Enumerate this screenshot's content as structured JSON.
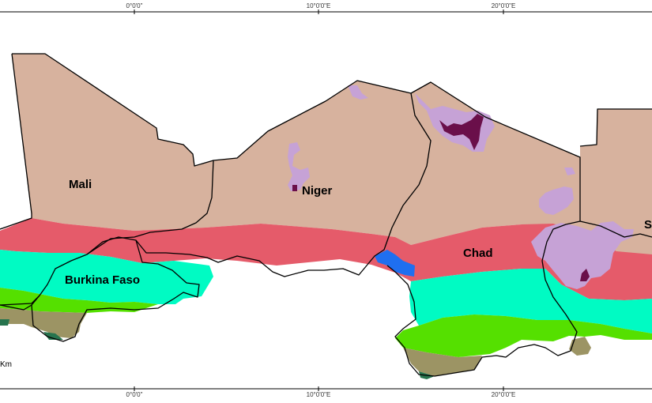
{
  "graticule": {
    "top": [
      "0°0'0\"",
      "10°0'0\"E",
      "20°0'0\"E"
    ],
    "bottom": [
      "0°0'0\"",
      "10°0'0\"E",
      "20°0'0\"E"
    ]
  },
  "countries": {
    "mali": "Mali",
    "niger": "Niger",
    "chad": "Chad",
    "burkina_faso": "Burkina Faso",
    "sudan_partial": "S"
  },
  "scale_unit": "Km",
  "colors": {
    "desert": "#d7b29e",
    "band_red": "#e55b6a",
    "band_cyan": "#00fbc3",
    "band_green": "#55e000",
    "band_olive": "#9c9464",
    "band_dark_green": "#27744e",
    "lake": "#1f6ff0",
    "highland_light": "#c6a2d6",
    "highland_dark": "#6a0f4a",
    "border": "#000000"
  }
}
